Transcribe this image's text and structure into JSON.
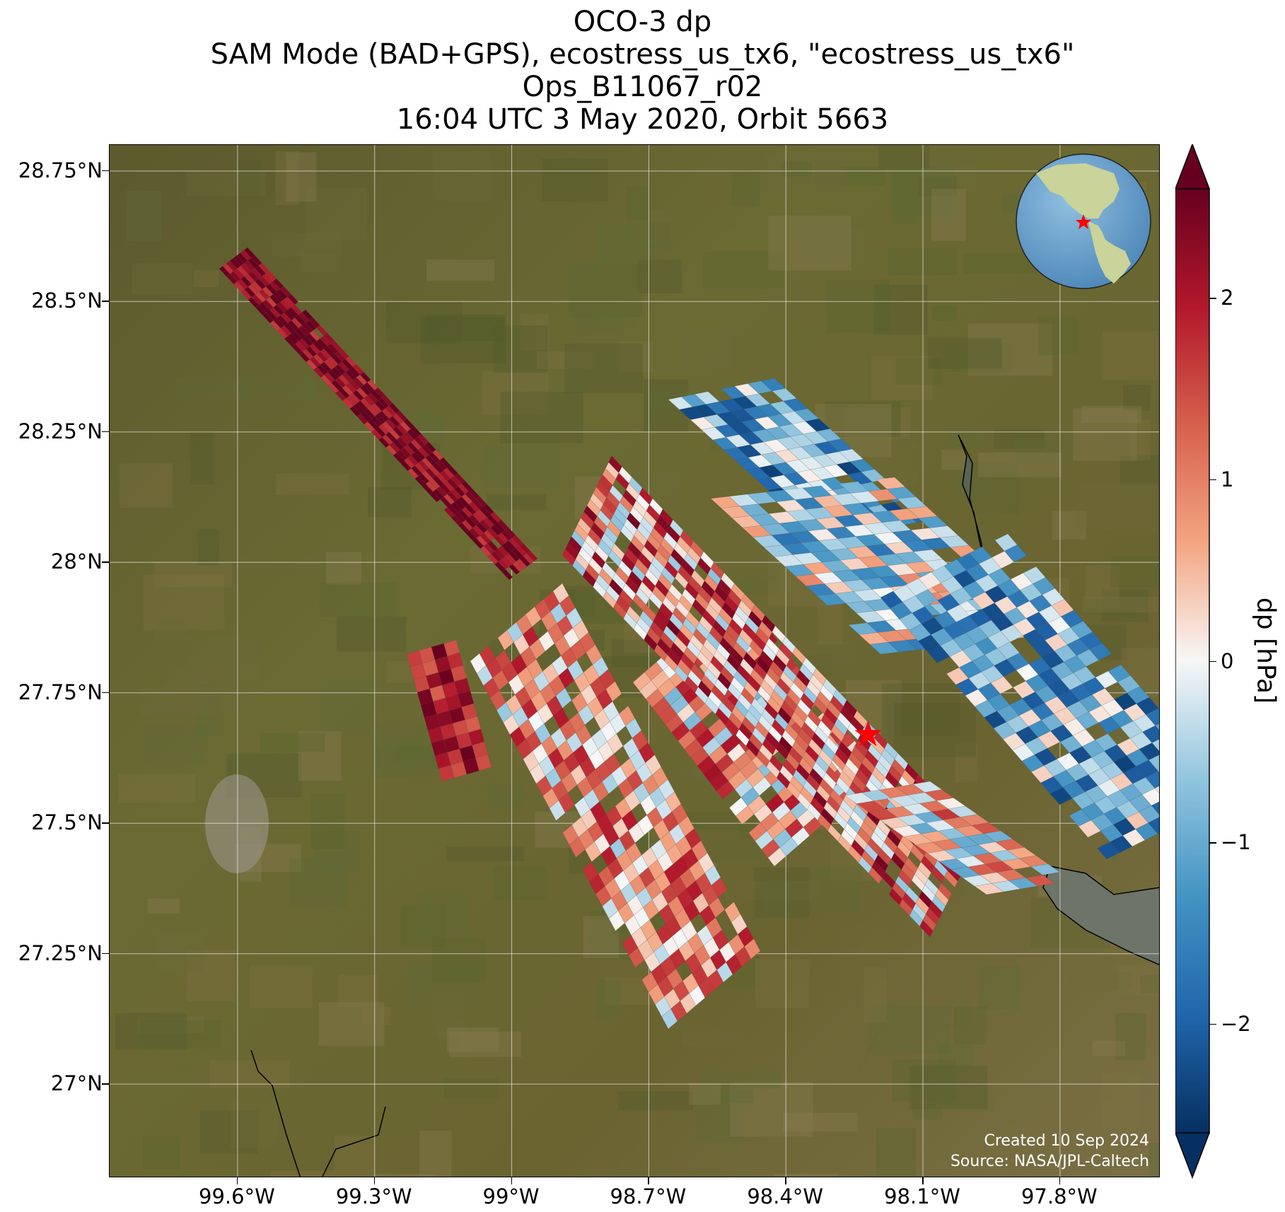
{
  "title": {
    "line1": "OCO-3 dp",
    "line2": "SAM Mode (BAD+GPS), ecostress_us_tx6, \"ecostress_us_tx6\"",
    "line3": "Ops_B11067_r02",
    "line4": "16:04 UTC 3 May 2020, Orbit 5663"
  },
  "map": {
    "lat_labels": [
      "28.75°N",
      "28.5°N",
      "28.25°N",
      "28°N",
      "27.75°N",
      "27.5°N",
      "27.25°N",
      "27°N"
    ],
    "lon_labels": [
      "99.6°W",
      "99.3°W",
      "99°W",
      "98.7°W",
      "98.4°W",
      "98.1°W",
      "97.8°W"
    ],
    "lat_range": [
      26.82,
      28.8
    ],
    "lon_range": [
      -99.88,
      -97.58
    ],
    "target_marker": {
      "lon": -98.22,
      "lat": 27.67,
      "color": "#ff0000",
      "icon": "star-icon"
    },
    "inset_globe": {
      "icon": "globe-icon",
      "marker": "star-icon"
    },
    "credit_line1": "Created 10 Sep 2024",
    "credit_line2": "Source: NASA/JPL-Caltech"
  },
  "colorbar": {
    "label": "dp [hPa]",
    "tick_labels": [
      "2",
      "1",
      "0",
      "−1",
      "−2"
    ],
    "tick_values": [
      2,
      1,
      0,
      -1,
      -2
    ],
    "range": [
      -2.6,
      2.6
    ],
    "colormap": "RdBu_r",
    "extend": "both"
  },
  "colors": {
    "dark_red": "#67001f",
    "red": "#b2182b",
    "light_red": "#f4a582",
    "white": "#f7f7f7",
    "light_blue": "#92c5de",
    "blue": "#2166ac",
    "dark_blue": "#053061",
    "target": "#ff0000"
  }
}
